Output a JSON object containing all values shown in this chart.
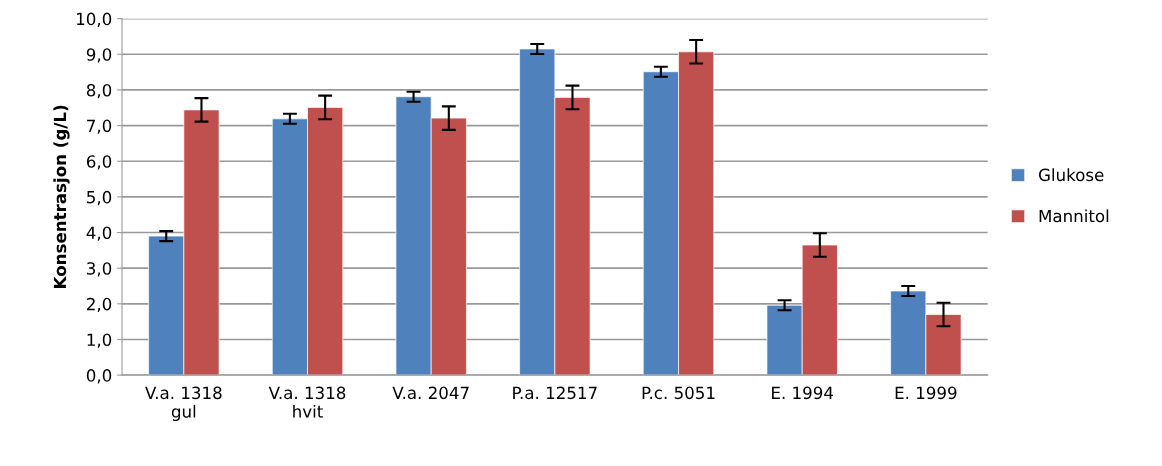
{
  "chart_data": {
    "type": "bar",
    "ylabel": "Konsentrasjon (g/L)",
    "categories": [
      "V.a. 1318\ngul",
      "V.a. 1318\nhvit",
      "V.a. 2047",
      "P.a. 12517",
      "P.c. 5051",
      "E. 1994",
      "E. 1999"
    ],
    "series": [
      {
        "name": "Glukose",
        "color": "#4f81bd",
        "values": [
          3.9,
          7.19,
          7.81,
          9.15,
          8.51,
          1.96,
          2.36
        ],
        "errors": [
          0.14,
          0.14,
          0.14,
          0.14,
          0.14,
          0.14,
          0.14
        ]
      },
      {
        "name": "Mannitol",
        "color": "#c0504d",
        "values": [
          7.44,
          7.51,
          7.21,
          7.79,
          9.07,
          3.65,
          1.7
        ],
        "errors": [
          0.33,
          0.33,
          0.33,
          0.33,
          0.33,
          0.33,
          0.33
        ]
      }
    ],
    "ylim": [
      0,
      10
    ],
    "yticks": [
      {
        "value": 0,
        "label": "0,0"
      },
      {
        "value": 1,
        "label": "1,0"
      },
      {
        "value": 2,
        "label": "2,0"
      },
      {
        "value": 3,
        "label": "3,0"
      },
      {
        "value": 4,
        "label": "4,0"
      },
      {
        "value": 5,
        "label": "5,0"
      },
      {
        "value": 6,
        "label": "6,0"
      },
      {
        "value": 7,
        "label": "7,0"
      },
      {
        "value": 8,
        "label": "8,0"
      },
      {
        "value": 9,
        "label": "9,0"
      },
      {
        "value": 10,
        "label": "10,0"
      }
    ],
    "grid": "y",
    "legend": "right"
  }
}
